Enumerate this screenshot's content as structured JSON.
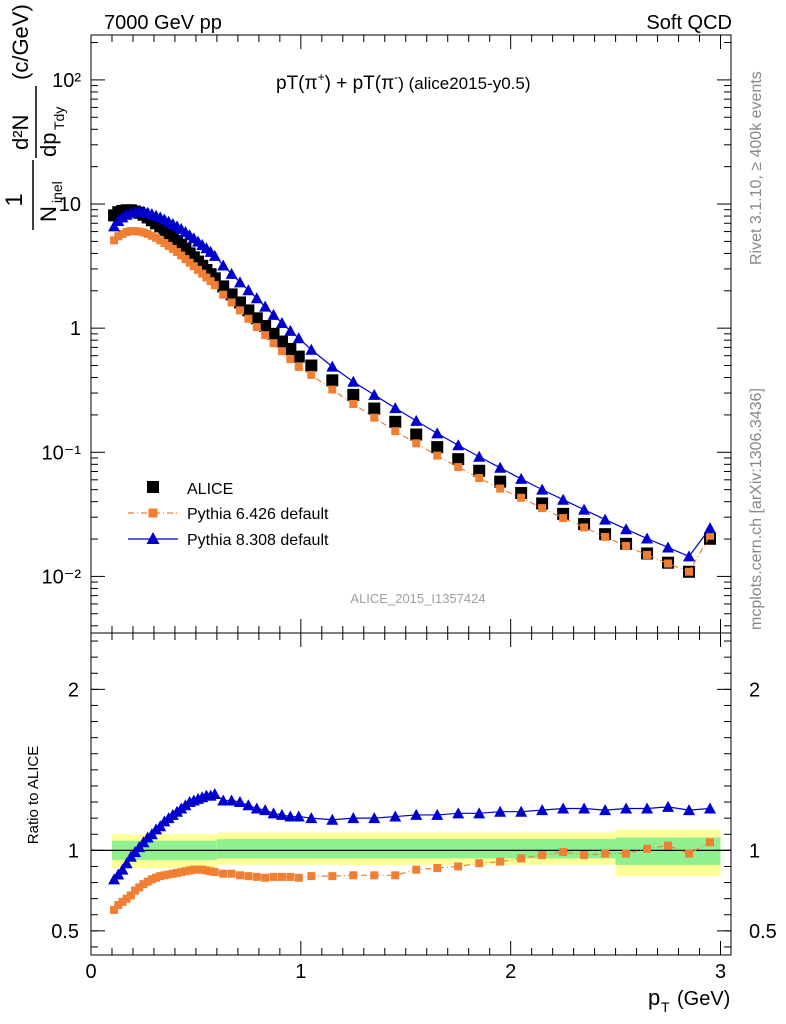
{
  "header": {
    "left": "7000 GeV pp",
    "right": "Soft QCD"
  },
  "side_labels": {
    "rivet": "Rivet 3.1.10, ≥ 400k events",
    "mcplots": "mcplots.cern.ch [arXiv:1306.3436]"
  },
  "chart_data": [
    {
      "panel": "main",
      "type": "scatter",
      "title": "pT(π+) + pT(π-) (alice2015-y0.5)",
      "title_parts": {
        "a": "pT(π",
        "a_sup": "+",
        "b": ") + pT(π",
        "b_sup": "-",
        "c": ") (alice2015-y0.5)"
      },
      "ylabel": "1/N_inel d²N/dp_T dy (c/GeV)",
      "ylabel_parts": {
        "one": "1",
        "N": "N",
        "inel": "inel",
        "d2N": "d²N",
        "dp": "dp",
        "Tdy": "Tdy",
        "unit": "(c/GeV)"
      },
      "yscale": "log",
      "ylim": [
        0.0035,
        230
      ],
      "xlim": [
        0,
        3.05
      ],
      "yticks": [
        {
          "value": 100,
          "label": "10²"
        },
        {
          "value": 10,
          "label": "10"
        },
        {
          "value": 1,
          "label": "1"
        },
        {
          "value": 0.1,
          "label": "10⁻¹"
        },
        {
          "value": 0.01,
          "label": "10⁻²"
        }
      ],
      "watermark": "ALICE_2015_I1357424",
      "legend": [
        "ALICE",
        "Pythia 6.426 default",
        "Pythia 8.308 default"
      ],
      "legend_placement": "bottom-left",
      "x": [
        0.11,
        0.13,
        0.15,
        0.17,
        0.19,
        0.21,
        0.23,
        0.25,
        0.27,
        0.29,
        0.31,
        0.33,
        0.35,
        0.37,
        0.39,
        0.41,
        0.43,
        0.45,
        0.47,
        0.49,
        0.51,
        0.53,
        0.55,
        0.57,
        0.59,
        0.63,
        0.67,
        0.71,
        0.75,
        0.79,
        0.83,
        0.87,
        0.91,
        0.95,
        0.99,
        1.05,
        1.15,
        1.25,
        1.35,
        1.45,
        1.55,
        1.65,
        1.75,
        1.85,
        1.95,
        2.05,
        2.15,
        2.25,
        2.35,
        2.45,
        2.55,
        2.65,
        2.75,
        2.85,
        2.95
      ],
      "series": [
        {
          "name": "ALICE",
          "marker": "square",
          "color": "#000000",
          "values": [
            8.1,
            8.6,
            8.8,
            8.9,
            8.9,
            8.7,
            8.5,
            8.2,
            7.8,
            7.4,
            7.0,
            6.6,
            6.2,
            5.8,
            5.4,
            5.05,
            4.7,
            4.35,
            4.0,
            3.72,
            3.44,
            3.18,
            2.94,
            2.72,
            2.52,
            2.17,
            1.87,
            1.61,
            1.39,
            1.2,
            1.04,
            0.9,
            0.78,
            0.68,
            0.59,
            0.5,
            0.38,
            0.29,
            0.225,
            0.176,
            0.139,
            0.11,
            0.088,
            0.071,
            0.058,
            0.047,
            0.0387,
            0.0319,
            0.0264,
            0.0219,
            0.0183,
            0.0153,
            0.0129,
            0.0109,
            0.0201
          ]
        },
        {
          "name": "Pythia 6.426 default",
          "marker": "square-small",
          "color": "#f07f33",
          "line": "dashdot",
          "values": [
            5.1,
            5.5,
            5.75,
            5.95,
            6.05,
            6.05,
            6.0,
            5.9,
            5.75,
            5.55,
            5.35,
            5.1,
            4.85,
            4.6,
            4.35,
            4.1,
            3.85,
            3.6,
            3.37,
            3.15,
            2.95,
            2.75,
            2.56,
            2.39,
            2.22,
            1.86,
            1.61,
            1.39,
            1.19,
            1.02,
            0.878,
            0.756,
            0.652,
            0.563,
            0.487,
            0.42,
            0.32,
            0.245,
            0.19,
            0.148,
            0.118,
            0.094,
            0.076,
            0.062,
            0.051,
            0.043,
            0.0355,
            0.0295,
            0.0248,
            0.0208,
            0.0176,
            0.0149,
            0.0127,
            0.0109,
            0.0213
          ]
        },
        {
          "name": "Pythia 8.308 default",
          "marker": "triangle",
          "color": "#0000cc",
          "line": "solid",
          "values": [
            6.6,
            7.3,
            7.8,
            8.2,
            8.5,
            8.65,
            8.7,
            8.65,
            8.5,
            8.3,
            8.05,
            7.8,
            7.5,
            7.2,
            6.9,
            6.6,
            6.3,
            5.95,
            5.6,
            5.3,
            4.98,
            4.68,
            4.4,
            4.12,
            3.82,
            3.2,
            2.74,
            2.34,
            2.02,
            1.74,
            1.49,
            1.28,
            1.1,
            0.95,
            0.83,
            0.67,
            0.49,
            0.37,
            0.29,
            0.227,
            0.179,
            0.142,
            0.114,
            0.092,
            0.075,
            0.061,
            0.05,
            0.0415,
            0.0345,
            0.0287,
            0.024,
            0.0202,
            0.0171,
            0.0145,
            0.0245
          ]
        }
      ]
    },
    {
      "panel": "ratio",
      "type": "line",
      "ylabel": "Ratio to ALICE",
      "xlabel": "p_T (GeV)",
      "xlabel_parts": {
        "p": "p",
        "T": "T",
        "unit": "(GeV)"
      },
      "xlim": [
        0,
        3.05
      ],
      "ylim": [
        0.35,
        2.35
      ],
      "xticks": [
        {
          "value": 0,
          "label": "0"
        },
        {
          "value": 1,
          "label": "1"
        },
        {
          "value": 2,
          "label": "2"
        },
        {
          "value": 3,
          "label": "3"
        }
      ],
      "yticks": [
        {
          "value": 2,
          "label": "2"
        },
        {
          "value": 1,
          "label": "1"
        },
        {
          "value": 0.5,
          "label": "0.5"
        }
      ],
      "uncertainty_bands": [
        {
          "x": [
            0.1,
            0.6
          ],
          "stat": [
            0.94,
            1.06
          ],
          "total": [
            0.89,
            1.1
          ]
        },
        {
          "x": [
            0.6,
            2.5
          ],
          "stat": [
            0.95,
            1.07
          ],
          "total": [
            0.91,
            1.11
          ]
        },
        {
          "x": [
            2.5,
            3.0
          ],
          "stat": [
            0.91,
            1.08
          ],
          "total": [
            0.84,
            1.13
          ]
        }
      ],
      "band_colors": {
        "stat": "#90f090",
        "total": "#ffff99"
      },
      "x": [
        0.11,
        0.13,
        0.15,
        0.17,
        0.19,
        0.21,
        0.23,
        0.25,
        0.27,
        0.29,
        0.31,
        0.33,
        0.35,
        0.37,
        0.39,
        0.41,
        0.43,
        0.45,
        0.47,
        0.49,
        0.51,
        0.53,
        0.55,
        0.57,
        0.59,
        0.63,
        0.67,
        0.71,
        0.75,
        0.79,
        0.83,
        0.87,
        0.91,
        0.95,
        0.99,
        1.05,
        1.15,
        1.25,
        1.35,
        1.45,
        1.55,
        1.65,
        1.75,
        1.85,
        1.95,
        2.05,
        2.15,
        2.25,
        2.35,
        2.45,
        2.55,
        2.65,
        2.75,
        2.85,
        2.95
      ],
      "series": [
        {
          "name": "Pythia 6.426 default",
          "marker": "square-small",
          "color": "#f07f33",
          "line": "dashdot",
          "values": [
            0.63,
            0.66,
            0.68,
            0.7,
            0.72,
            0.75,
            0.77,
            0.79,
            0.805,
            0.82,
            0.83,
            0.84,
            0.845,
            0.85,
            0.855,
            0.86,
            0.865,
            0.87,
            0.875,
            0.88,
            0.88,
            0.88,
            0.875,
            0.87,
            0.865,
            0.855,
            0.855,
            0.845,
            0.84,
            0.835,
            0.83,
            0.835,
            0.835,
            0.835,
            0.83,
            0.84,
            0.84,
            0.845,
            0.845,
            0.845,
            0.88,
            0.89,
            0.9,
            0.92,
            0.93,
            0.95,
            0.97,
            0.99,
            0.97,
            0.98,
            0.98,
            1.01,
            1.03,
            0.98,
            1.05
          ]
        },
        {
          "name": "Pythia 8.308 default",
          "marker": "triangle",
          "color": "#0000cc",
          "line": "solid",
          "values": [
            0.82,
            0.85,
            0.88,
            0.92,
            0.96,
            0.99,
            1.02,
            1.05,
            1.08,
            1.1,
            1.13,
            1.15,
            1.18,
            1.2,
            1.22,
            1.24,
            1.26,
            1.28,
            1.3,
            1.31,
            1.32,
            1.33,
            1.34,
            1.34,
            1.35,
            1.31,
            1.31,
            1.3,
            1.28,
            1.26,
            1.25,
            1.23,
            1.22,
            1.21,
            1.21,
            1.2,
            1.19,
            1.2,
            1.2,
            1.21,
            1.22,
            1.22,
            1.23,
            1.23,
            1.24,
            1.24,
            1.25,
            1.26,
            1.26,
            1.25,
            1.26,
            1.26,
            1.27,
            1.25,
            1.26
          ]
        }
      ]
    }
  ]
}
